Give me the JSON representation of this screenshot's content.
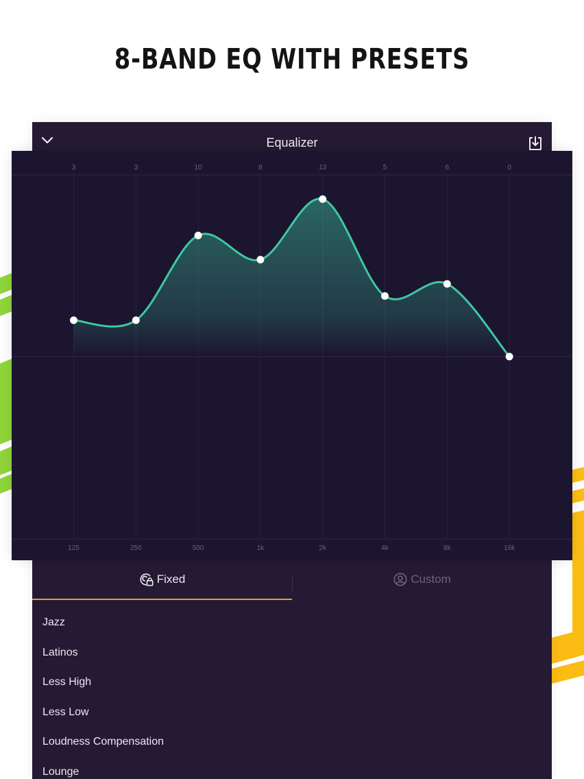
{
  "headline": "8-BAND EQ WITH PRESETS",
  "colors": {
    "accent_green": "#3ccaa0",
    "accent_yellow": "#e3a322",
    "panel_bg": "#241a33",
    "graph_bg": "#1c1530",
    "stripe_green": "#8fd63a",
    "stripe_yellow": "#fbbd14"
  },
  "header": {
    "title": "Equalizer",
    "back_icon": "chevron-down-icon",
    "save_icon": "download-icon"
  },
  "chart_data": {
    "type": "line",
    "categories": [
      "125",
      "250",
      "500",
      "1k",
      "2k",
      "4k",
      "8k",
      "16k"
    ],
    "values": [
      3,
      3,
      10,
      8,
      13,
      5,
      6,
      0
    ],
    "ylim": [
      -15,
      15
    ],
    "grid": true
  },
  "tabs": [
    {
      "label": "Fixed",
      "icon": "lock-icon",
      "active": true
    },
    {
      "label": "Custom",
      "icon": "user-icon",
      "active": false
    }
  ],
  "presets": [
    "Jazz",
    "Latinos",
    "Less High",
    "Less Low",
    "Loudness Compensation",
    "Lounge"
  ]
}
